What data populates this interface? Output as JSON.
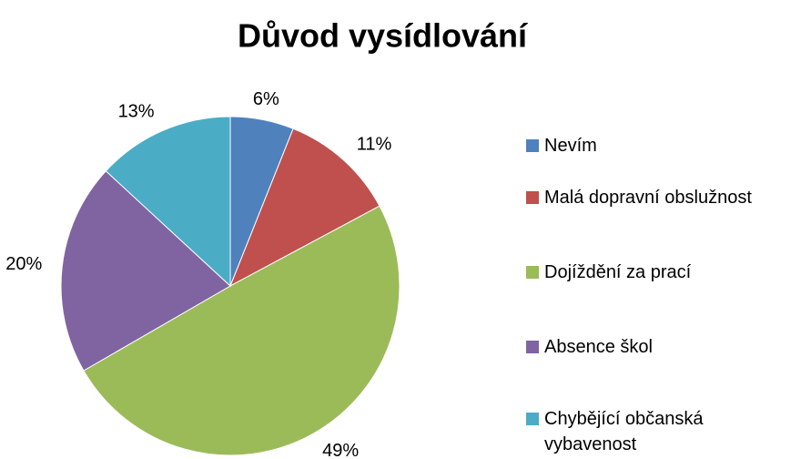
{
  "chart_data": {
    "type": "pie",
    "title": "Důvod vysídlování",
    "categories": [
      "Nevím",
      "Malá dopravní obslužnost",
      "Dojíždění za prací",
      "Absence škol",
      "Chybějící občanská vybavenost"
    ],
    "values": [
      6,
      11,
      49,
      20,
      13
    ],
    "value_labels": [
      "6%",
      "11%",
      "49%",
      "20%",
      "13%"
    ],
    "colors": [
      "#4f81bd",
      "#c0504d",
      "#9bbb59",
      "#8064a2",
      "#4bacc6"
    ],
    "legend": "right"
  }
}
